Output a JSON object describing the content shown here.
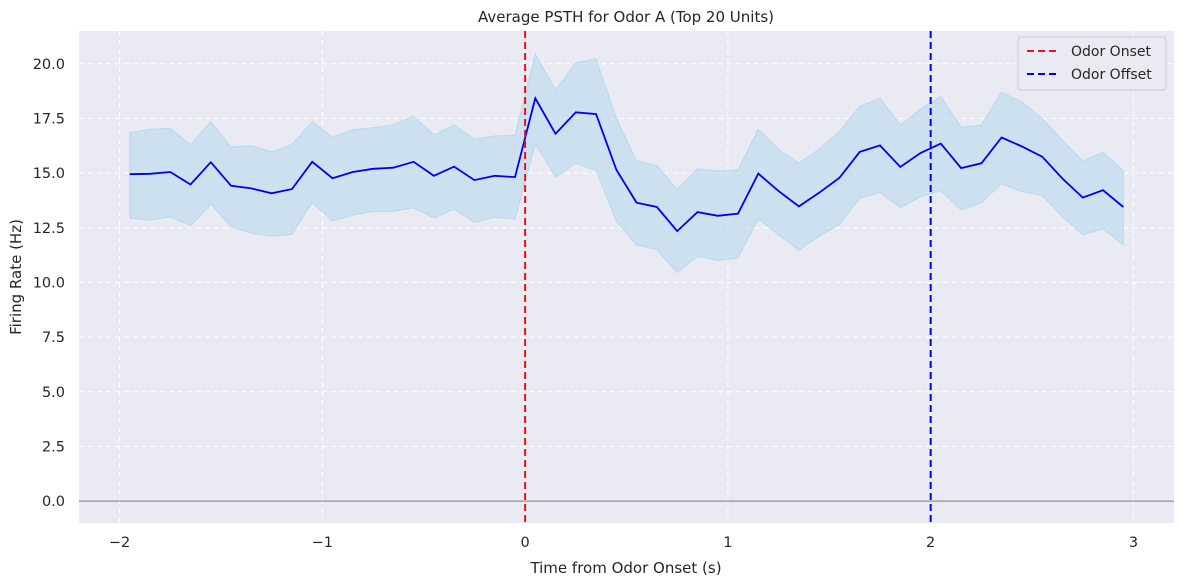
{
  "chart_data": {
    "type": "line",
    "title": "Average PSTH for Odor A (Top 20 Units)",
    "xlabel": "Time from Odor Onset (s)",
    "ylabel": "Firing Rate (Hz)",
    "xlim": [
      -2.2,
      3.2
    ],
    "ylim": [
      -1.0,
      21.5
    ],
    "x_ticks": [
      -2,
      -1,
      0,
      1,
      2,
      3
    ],
    "x_tick_labels": [
      "−2",
      "−1",
      "0",
      "1",
      "2",
      "3"
    ],
    "y_ticks": [
      0.0,
      2.5,
      5.0,
      7.5,
      10.0,
      12.5,
      15.0,
      17.5,
      20.0
    ],
    "y_tick_labels": [
      "0.0",
      "2.5",
      "5.0",
      "7.5",
      "10.0",
      "12.5",
      "15.0",
      "17.5",
      "20.0"
    ],
    "grid": true,
    "legend_position": "top-right",
    "zero_line": {
      "y": 0,
      "color": "#a0a0a0"
    },
    "vlines": [
      {
        "x": 0,
        "label": "Odor Onset",
        "color": "#e8101a",
        "style": "dashed"
      },
      {
        "x": 2,
        "label": "Odor Offset",
        "color": "#0000ee",
        "style": "dashed"
      }
    ],
    "series": [
      {
        "color": "#0000ee",
        "band_color": "#b7d9ef",
        "x": [
          -1.95,
          -1.85,
          -1.75,
          -1.65,
          -1.55,
          -1.45,
          -1.35,
          -1.25,
          -1.15,
          -1.05,
          -0.95,
          -0.85,
          -0.75,
          -0.65,
          -0.55,
          -0.45,
          -0.35,
          -0.25,
          -0.15,
          -0.05,
          0.05,
          0.15,
          0.25,
          0.35,
          0.45,
          0.55,
          0.65,
          0.75,
          0.85,
          0.95,
          1.05,
          1.15,
          1.25,
          1.35,
          1.45,
          1.55,
          1.65,
          1.75,
          1.85,
          1.95,
          2.05,
          2.15,
          2.25,
          2.35,
          2.45,
          2.55,
          2.65,
          2.75,
          2.85,
          2.95
        ],
        "mean": [
          14.95,
          14.97,
          15.05,
          14.48,
          15.5,
          14.42,
          14.3,
          14.08,
          14.27,
          15.52,
          14.77,
          15.05,
          15.2,
          15.25,
          15.52,
          14.88,
          15.3,
          14.68,
          14.88,
          14.82,
          18.42,
          16.8,
          17.78,
          17.7,
          15.15,
          13.65,
          13.45,
          12.35,
          13.22,
          13.05,
          13.15,
          14.98,
          14.18,
          13.48,
          14.1,
          14.78,
          15.97,
          16.27,
          15.28,
          15.92,
          16.35,
          15.23,
          15.45,
          16.63,
          16.22,
          15.75,
          14.75,
          13.88,
          14.22,
          13.45
        ],
        "upper": [
          16.85,
          17.0,
          17.05,
          16.3,
          17.35,
          16.2,
          16.25,
          15.98,
          16.3,
          17.35,
          16.65,
          16.98,
          17.08,
          17.22,
          17.6,
          16.75,
          17.2,
          16.55,
          16.7,
          16.72,
          20.45,
          18.8,
          20.05,
          20.22,
          17.5,
          15.55,
          15.35,
          14.25,
          15.2,
          15.1,
          15.15,
          17.0,
          16.1,
          15.45,
          16.1,
          16.9,
          18.05,
          18.42,
          17.2,
          17.92,
          18.5,
          17.1,
          17.2,
          18.7,
          18.25,
          17.5,
          16.5,
          15.55,
          15.95,
          15.12
        ],
        "lower": [
          12.95,
          12.85,
          13.0,
          12.6,
          13.58,
          12.55,
          12.25,
          12.12,
          12.2,
          13.65,
          12.82,
          13.08,
          13.25,
          13.25,
          13.42,
          12.95,
          13.35,
          12.75,
          12.98,
          12.9,
          16.35,
          14.82,
          15.45,
          15.12,
          12.8,
          11.72,
          11.5,
          10.45,
          11.2,
          11.0,
          11.12,
          12.92,
          12.18,
          11.48,
          12.12,
          12.65,
          13.85,
          14.12,
          13.42,
          13.92,
          14.2,
          13.32,
          13.65,
          14.52,
          14.15,
          13.98,
          13.0,
          12.18,
          12.45,
          11.72
        ]
      }
    ]
  }
}
